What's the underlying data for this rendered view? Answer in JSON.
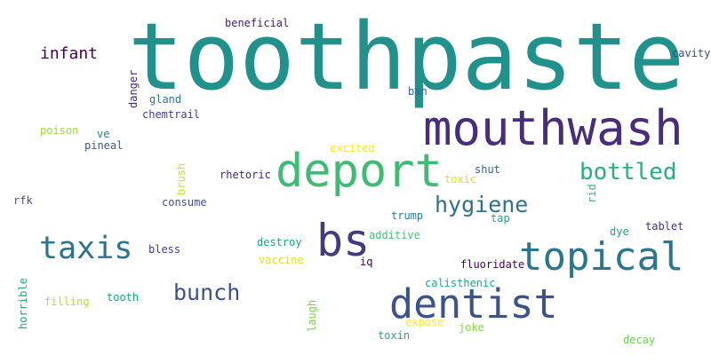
{
  "words": [
    {
      "text": "toothpaste",
      "color": "#21918c"
    },
    {
      "text": "mouthwash",
      "color": "#472d7b"
    },
    {
      "text": "deport",
      "color": "#3fbc73"
    },
    {
      "text": "bottled",
      "color": "#28ae80"
    },
    {
      "text": "hygiene",
      "color": "#2c728e"
    },
    {
      "text": "bs",
      "color": "#443a83"
    },
    {
      "text": "topical",
      "color": "#2a768e"
    },
    {
      "text": "taxis",
      "color": "#2c738e"
    },
    {
      "text": "dentist",
      "color": "#3b528b"
    },
    {
      "text": "bunch",
      "color": "#3b528b"
    },
    {
      "text": "infant",
      "color": "#440154"
    },
    {
      "text": "beneficial",
      "color": "#481a6c"
    },
    {
      "text": "cavity",
      "color": "#3e4989"
    },
    {
      "text": "danger",
      "color": "#482878"
    },
    {
      "text": "gland",
      "color": "#2a788e"
    },
    {
      "text": "ban",
      "color": "#31688e"
    },
    {
      "text": "chemtrail",
      "color": "#433e85"
    },
    {
      "text": "poison",
      "color": "#a0da39"
    },
    {
      "text": "ve",
      "color": "#287c8e"
    },
    {
      "text": "pineal",
      "color": "#38598c"
    },
    {
      "text": "excited",
      "color": "#fde725"
    },
    {
      "text": "toxic",
      "color": "#dfe318"
    },
    {
      "text": "shut",
      "color": "#31688e"
    },
    {
      "text": "brush",
      "color": "#d0e11c"
    },
    {
      "text": "rhetoric",
      "color": "#482475"
    },
    {
      "text": "rid",
      "color": "#35b779"
    },
    {
      "text": "rfk",
      "color": "#3b528b"
    },
    {
      "text": "consume",
      "color": "#3b528b"
    },
    {
      "text": "trump",
      "color": "#277f8e"
    },
    {
      "text": "tap",
      "color": "#1fa187"
    },
    {
      "text": "additive",
      "color": "#4ac16d"
    },
    {
      "text": "dye",
      "color": "#1f9e89"
    },
    {
      "text": "tablet",
      "color": "#46327e"
    },
    {
      "text": "bless",
      "color": "#424086"
    },
    {
      "text": "destroy",
      "color": "#1f9e89"
    },
    {
      "text": "vaccine",
      "color": "#dfe318"
    },
    {
      "text": "iq",
      "color": "#440154"
    },
    {
      "text": "fluoridate",
      "color": "#440154"
    },
    {
      "text": "calisthenic",
      "color": "#21a685"
    },
    {
      "text": "horrible",
      "color": "#20a486"
    },
    {
      "text": "filling",
      "color": "#b5de2b"
    },
    {
      "text": "tooth",
      "color": "#1fa187"
    },
    {
      "text": "laugh",
      "color": "#7ad151"
    },
    {
      "text": "expose",
      "color": "#fde725"
    },
    {
      "text": "joke",
      "color": "#86d549"
    },
    {
      "text": "toxin",
      "color": "#22a884"
    },
    {
      "text": "decay",
      "color": "#6ece58"
    }
  ]
}
